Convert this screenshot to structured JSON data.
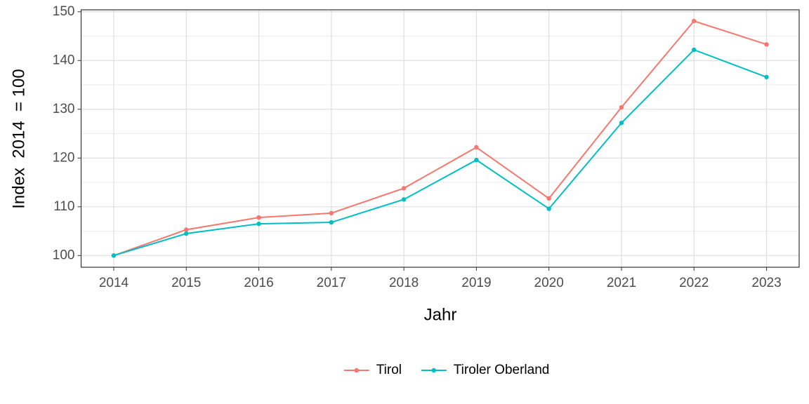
{
  "chart_data": {
    "type": "line",
    "x_label": "Jahr",
    "y_label": "Index  2014  = 100",
    "x": [
      2014,
      2015,
      2016,
      2017,
      2018,
      2019,
      2020,
      2021,
      2022,
      2023
    ],
    "series": [
      {
        "name": "Tirol",
        "color": "#F8766D",
        "values": [
          100,
          105.3,
          107.8,
          108.7,
          113.8,
          122.2,
          111.7,
          130.4,
          148.1,
          143.3
        ]
      },
      {
        "name": "Tiroler Oberland",
        "color": "#00BFC4",
        "values": [
          100,
          104.5,
          106.5,
          106.8,
          111.5,
          119.6,
          109.6,
          127.2,
          142.2,
          136.6
        ]
      }
    ],
    "xlim": [
      2013.55,
      2023.45
    ],
    "xticks": [
      2014,
      2015,
      2016,
      2017,
      2018,
      2019,
      2020,
      2021,
      2022,
      2023
    ],
    "ylim": [
      97.6,
      150.4
    ],
    "yticks": [
      100,
      110,
      120,
      130,
      140,
      150
    ],
    "grid": true,
    "legend": "bottom"
  }
}
